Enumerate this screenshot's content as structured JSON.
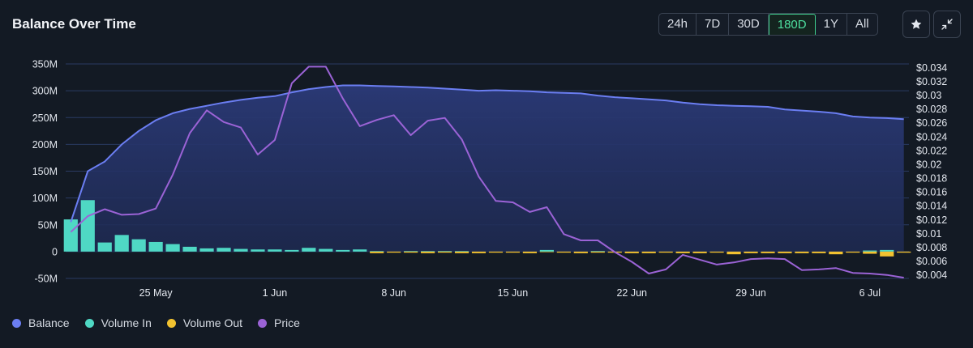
{
  "header": {
    "title": "Balance Over Time",
    "ranges": [
      "24h",
      "7D",
      "30D",
      "180D",
      "1Y",
      "All"
    ],
    "active_range": "180D",
    "buttons": [
      {
        "name": "star-icon-button",
        "icon": "star-icon"
      },
      {
        "name": "collapse-icon-button",
        "icon": "collapse-arrows-icon"
      }
    ]
  },
  "colors": {
    "balance": "#6b7ef2",
    "volume_in": "#4fd8c4",
    "volume_out": "#f2c230",
    "price": "#9b63d6",
    "grid": "#2a3a62"
  },
  "chart_data": {
    "type": "combo",
    "title": "Balance Over Time",
    "x_ticks": [
      "25 May",
      "1 Jun",
      "8 Jun",
      "15 Jun",
      "22 Jun",
      "29 Jun",
      "6 Jul"
    ],
    "y_left_ticks": [
      "350M",
      "300M",
      "250M",
      "200M",
      "150M",
      "100M",
      "50M",
      "0",
      "-50M"
    ],
    "y_left_range": [
      -50,
      350
    ],
    "y_left_unit": "M",
    "y_right_ticks": [
      "$0.034",
      "$0.032",
      "$0.03",
      "$0.028",
      "$0.026",
      "$0.024",
      "$0.022",
      "$0.02",
      "$0.018",
      "$0.016",
      "$0.014",
      "$0.012",
      "$0.01",
      "$0.008",
      "$0.006",
      "$0.004"
    ],
    "y_right_range": [
      0.0035,
      0.0345
    ],
    "x_range_days": [
      -0.3,
      49.3
    ],
    "x_ticks_day": [
      5,
      12,
      19,
      26,
      33,
      40,
      47
    ],
    "days": [
      0,
      1,
      2,
      3,
      4,
      5,
      6,
      7,
      8,
      9,
      10,
      11,
      12,
      13,
      14,
      15,
      16,
      17,
      18,
      19,
      20,
      21,
      22,
      23,
      24,
      25,
      26,
      27,
      28,
      29,
      30,
      31,
      32,
      33,
      34,
      35,
      36,
      37,
      38,
      39,
      40,
      41,
      42,
      43,
      44,
      45,
      46,
      47,
      48,
      49
    ],
    "series": [
      {
        "name": "Balance",
        "type": "area",
        "axis": "left",
        "values": [
          55,
          150,
          168,
          200,
          225,
          245,
          258,
          266,
          272,
          278,
          283,
          287,
          290,
          297,
          303,
          307,
          310,
          310,
          309,
          308,
          307,
          306,
          304,
          302,
          300,
          301,
          300,
          299,
          297,
          296,
          295,
          291,
          288,
          286,
          284,
          282,
          278,
          275,
          273,
          272,
          271,
          270,
          265,
          263,
          261,
          258,
          252,
          250,
          249,
          247
        ]
      },
      {
        "name": "Volume In",
        "type": "bar",
        "axis": "left",
        "values": [
          60,
          96,
          17,
          31,
          23,
          18,
          14,
          9,
          6,
          7,
          5,
          4,
          4,
          3,
          7,
          5,
          3,
          4,
          1,
          0,
          1,
          1,
          1,
          1,
          0,
          0,
          0,
          0,
          3,
          0,
          0,
          1,
          0,
          0,
          0,
          0,
          0,
          0,
          0,
          0,
          0,
          0,
          0,
          0,
          0,
          0,
          0,
          2,
          3,
          0
        ]
      },
      {
        "name": "Volume Out",
        "type": "bar",
        "axis": "left",
        "values": [
          0,
          0,
          0,
          0,
          0,
          0,
          0,
          0,
          0,
          0,
          0,
          0,
          0,
          0,
          0,
          0,
          0,
          0,
          -3,
          -2,
          -2,
          -3,
          -2,
          -3,
          -3,
          -2,
          -2,
          -3,
          -1,
          -2,
          -3,
          -2,
          -2,
          -3,
          -3,
          -2,
          -3,
          -3,
          -2,
          -5,
          -3,
          -3,
          -3,
          -3,
          -3,
          -5,
          -2,
          -4,
          -9,
          -2
        ]
      },
      {
        "name": "Price",
        "type": "line",
        "axis": "right",
        "values": [
          0.0102,
          0.0125,
          0.0135,
          0.0127,
          0.0128,
          0.0136,
          0.0185,
          0.0245,
          0.0278,
          0.0261,
          0.0253,
          0.0214,
          0.0235,
          0.0317,
          0.0341,
          0.0341,
          0.0295,
          0.0255,
          0.0264,
          0.0271,
          0.0242,
          0.0263,
          0.0267,
          0.0236,
          0.0182,
          0.0147,
          0.0145,
          0.0131,
          0.0138,
          0.0099,
          0.009,
          0.009,
          0.0073,
          0.0059,
          0.0042,
          0.0048,
          0.0069,
          0.0062,
          0.0055,
          0.0058,
          0.0063,
          0.0064,
          0.0063,
          0.0047,
          0.0048,
          0.005,
          0.0043,
          0.0042,
          0.004,
          0.0036
        ]
      }
    ],
    "legend": [
      "Balance",
      "Volume In",
      "Volume Out",
      "Price"
    ],
    "legend_position": "bottom-left",
    "grid": true
  }
}
